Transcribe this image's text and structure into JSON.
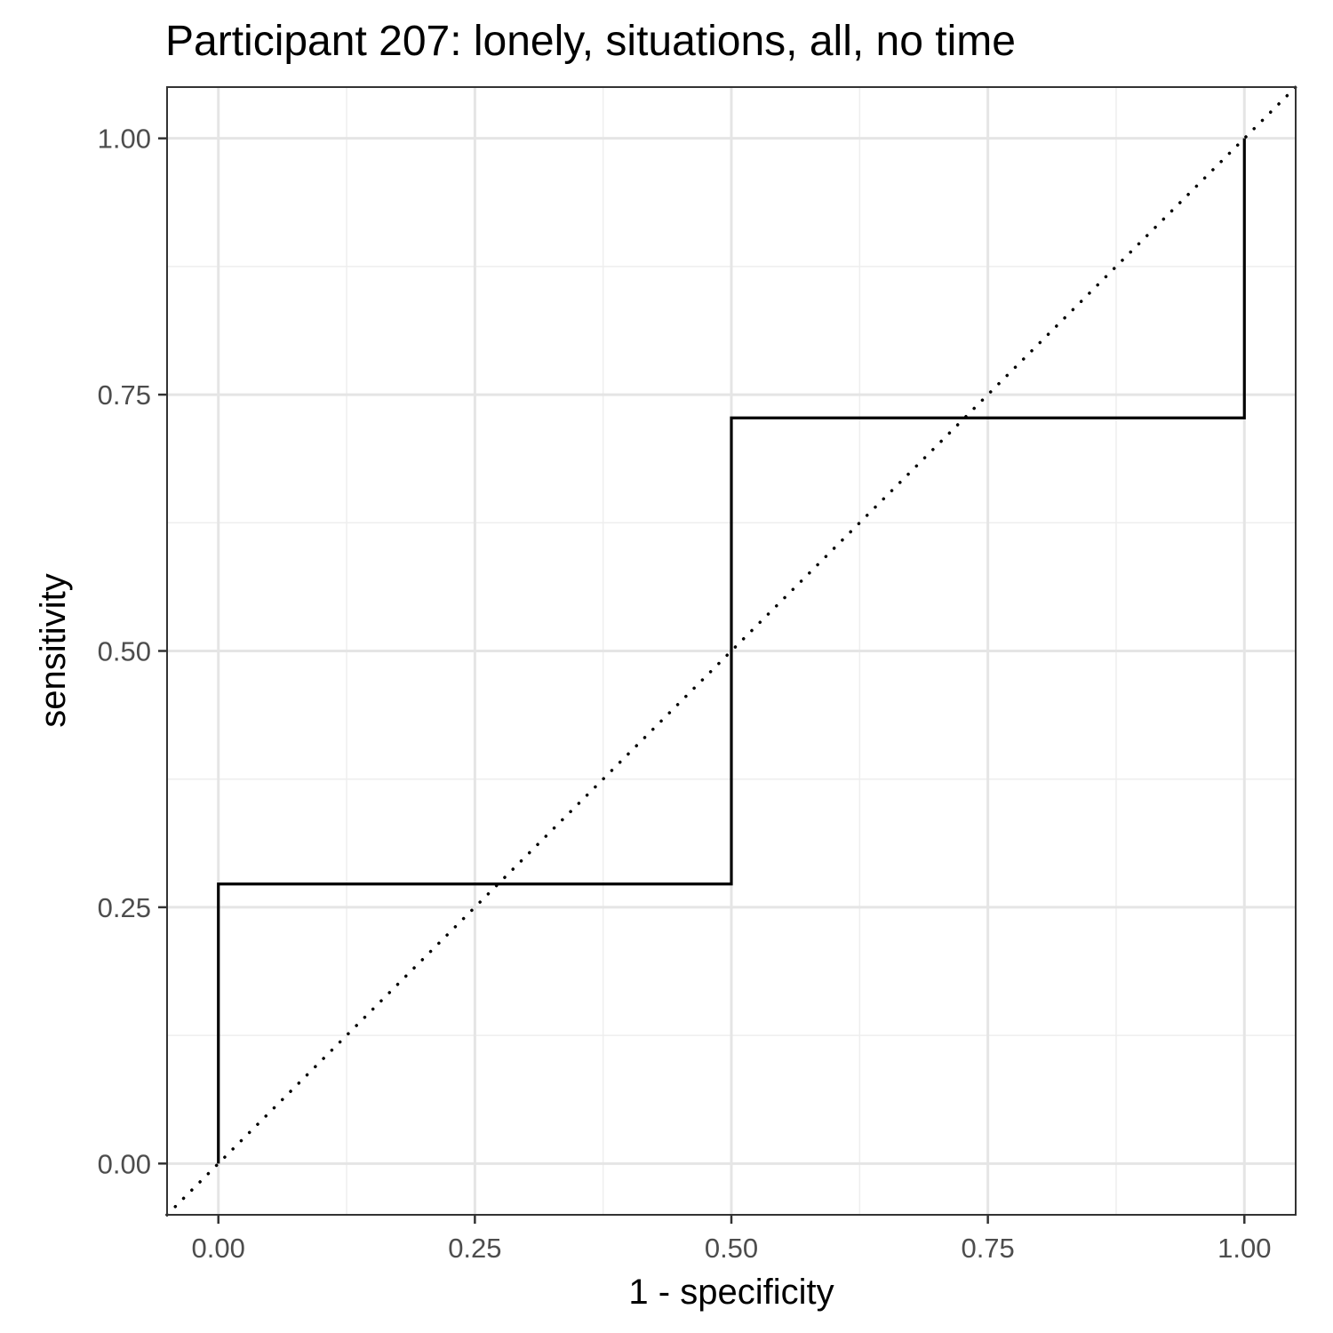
{
  "chart_data": {
    "type": "line",
    "title": "Participant 207: lonely, situations, all, no time",
    "xlabel": "1 - specificity",
    "ylabel": "sensitivity",
    "xlim": [
      -0.05,
      1.05
    ],
    "ylim": [
      -0.05,
      1.05
    ],
    "x_ticks": [
      0.0,
      0.25,
      0.5,
      0.75,
      1.0
    ],
    "x_tick_labels": [
      "0.00",
      "0.25",
      "0.50",
      "0.75",
      "1.00"
    ],
    "y_ticks": [
      0.0,
      0.25,
      0.5,
      0.75,
      1.0
    ],
    "y_tick_labels": [
      "0.00",
      "0.25",
      "0.50",
      "0.75",
      "1.00"
    ],
    "grid": true,
    "series": [
      {
        "name": "ROC curve",
        "style": "solid",
        "x": [
          0.0,
          0.0,
          0.5,
          0.5,
          1.0,
          1.0
        ],
        "y": [
          0.0,
          0.2727,
          0.2727,
          0.7273,
          0.7273,
          1.0
        ]
      },
      {
        "name": "reference diagonal",
        "style": "dotted",
        "x": [
          -0.05,
          1.05
        ],
        "y": [
          -0.05,
          1.05
        ]
      }
    ],
    "colors": {
      "line": "#000000",
      "grid": "#e5e5e5",
      "border": "#333333"
    }
  }
}
